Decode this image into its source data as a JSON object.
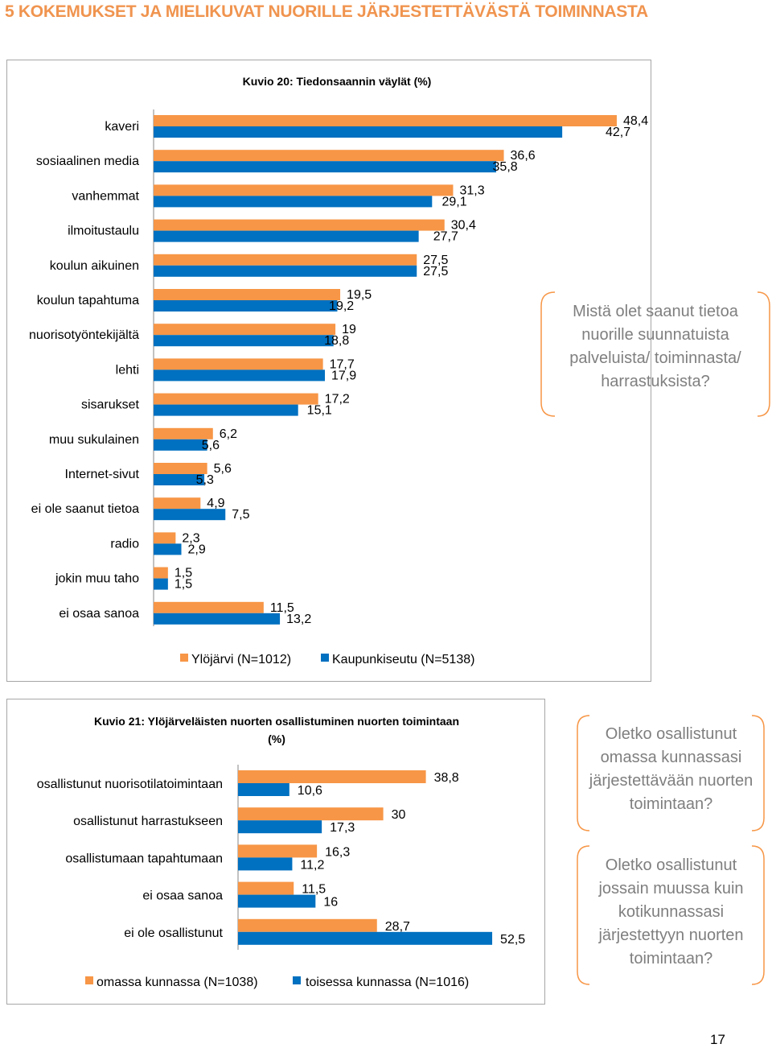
{
  "page": {
    "heading": "5 KOKEMUKSET JA MIELIKUVAT NUORILLE JÄRJESTETTÄVÄSTÄ TOIMINNASTA",
    "page_number": "17",
    "callouts": [
      "Mistä olet saanut tietoa nuorille suunnatuista palveluista/ toiminnasta/ harrastuksista?",
      "Oletko osallistunut omassa kunnassasi järjestettävään nuorten toimintaan?",
      "Oletko osallistunut jossain muussa kuin kotikunnassasi järjestettyyn nuorten toimintaan?"
    ]
  },
  "colors": {
    "orange": "#f79646",
    "blue": "#0070c0",
    "callout_text": "#7f7f7f",
    "brace": "#f79646"
  },
  "chart_data": [
    {
      "type": "bar",
      "orientation": "horizontal",
      "title": "Kuvio 20: Tiedonsaannin väylät (%)",
      "categories": [
        "kaveri",
        "sosiaalinen media",
        "vanhemmat",
        "ilmoitustaulu",
        "koulun aikuinen",
        "koulun tapahtuma",
        "nuorisotyöntekijältä",
        "lehti",
        "sisarukset",
        "muu sukulainen",
        "Internet-sivut",
        "ei ole saanut tietoa",
        "radio",
        "jokin muu taho",
        "ei osaa sanoa"
      ],
      "series": [
        {
          "name": "Ylöjärvi (N=1012)",
          "color": "#f79646",
          "values": [
            48.4,
            36.6,
            31.3,
            30.4,
            27.5,
            19.5,
            19,
            17.7,
            17.2,
            6.2,
            5.6,
            4.9,
            2.3,
            1.5,
            11.5
          ],
          "labels": [
            "48,4",
            "36,6",
            "31,3",
            "30,4",
            "27,5",
            "19,5",
            "19",
            "17,7",
            "17,2",
            "6,2",
            "5,6",
            "4,9",
            "2,3",
            "1,5",
            "11,5"
          ]
        },
        {
          "name": "Kaupunkiseutu (N=5138)",
          "color": "#0070c0",
          "values": [
            42.7,
            35.8,
            29.1,
            27.7,
            27.5,
            19.2,
            18.8,
            17.9,
            15.1,
            5.6,
            5.3,
            7.5,
            2.9,
            1.5,
            13.2
          ],
          "labels": [
            "42,7",
            "35,8",
            "29,1",
            "27,7",
            "27,5",
            "19,2",
            "18,8",
            "17,9",
            "15,1",
            "5,6",
            "5,3",
            "7,5",
            "2,9",
            "1,5",
            "13,2"
          ]
        }
      ],
      "legend_position": "bottom",
      "grid": false
    },
    {
      "type": "bar",
      "orientation": "horizontal",
      "title": "Kuvio 21: Ylöjärveläisten nuorten osallistuminen nuorten toimintaan (%)",
      "categories": [
        "osallistunut nuorisotilatoimintaan",
        "osallistunut harrastukseen",
        "osallistumaan tapahtumaan",
        "ei osaa sanoa",
        "ei ole osallistunut"
      ],
      "series": [
        {
          "name": "omassa kunnassa (N=1038)",
          "color": "#f79646",
          "values": [
            38.8,
            30,
            16.3,
            11.5,
            28.7
          ],
          "labels": [
            "38,8",
            "30",
            "16,3",
            "11,5",
            "28,7"
          ]
        },
        {
          "name": "toisessa kunnassa (N=1016)",
          "color": "#0070c0",
          "values": [
            10.6,
            17.3,
            11.2,
            16,
            52.5
          ],
          "labels": [
            "10,6",
            "17,3",
            "11,2",
            "16",
            "52,5"
          ]
        }
      ],
      "legend_position": "bottom",
      "grid": false
    }
  ]
}
